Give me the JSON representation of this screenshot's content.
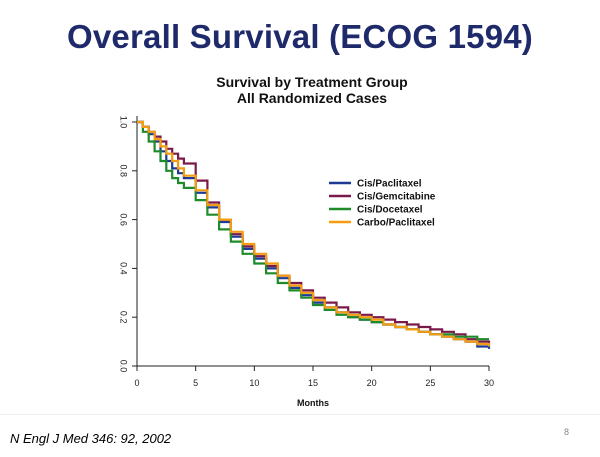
{
  "slide": {
    "title": "Overall Survival (ECOG 1594)",
    "citation": "N Engl J Med 346: 92, 2002",
    "page_number": "8"
  },
  "chart_data": {
    "type": "line",
    "title": "Survival by Treatment Group",
    "subtitle": "All Randomized Cases",
    "xlabel": "Months",
    "ylabel": "",
    "xlim": [
      0,
      30
    ],
    "ylim": [
      0,
      1
    ],
    "xticks": [
      0,
      5,
      10,
      15,
      20,
      25,
      30
    ],
    "yticks": [
      0.0,
      0.2,
      0.4,
      0.6,
      0.8,
      1.0
    ],
    "ytick_labels": [
      "0.0",
      "0.2",
      "0.4",
      "0.6",
      "0.8",
      "1.0"
    ],
    "grid": false,
    "legend_position": "right",
    "series": [
      {
        "name": "Cis/Paclitaxel",
        "color": "#1f3a93",
        "x": [
          0,
          0.5,
          1,
          1.5,
          2,
          2.5,
          3,
          3.5,
          4,
          5,
          6,
          7,
          8,
          9,
          10,
          11,
          12,
          13,
          14,
          15,
          16,
          17,
          18,
          19,
          20,
          21,
          22,
          23,
          24,
          25,
          26,
          27,
          28,
          29,
          30
        ],
        "y": [
          1.0,
          0.98,
          0.95,
          0.92,
          0.88,
          0.84,
          0.81,
          0.79,
          0.77,
          0.71,
          0.65,
          0.59,
          0.53,
          0.48,
          0.44,
          0.4,
          0.36,
          0.32,
          0.29,
          0.26,
          0.24,
          0.22,
          0.2,
          0.19,
          0.18,
          0.17,
          0.16,
          0.15,
          0.14,
          0.13,
          0.12,
          0.11,
          0.1,
          0.08,
          0.07
        ]
      },
      {
        "name": "Cis/Gemcitabine",
        "color": "#7a1a4a",
        "x": [
          0,
          0.5,
          1,
          1.5,
          2,
          2.5,
          3,
          3.5,
          4,
          5,
          6,
          7,
          8,
          9,
          10,
          11,
          12,
          13,
          14,
          15,
          16,
          17,
          18,
          19,
          20,
          21,
          22,
          23,
          24,
          25,
          26,
          27,
          28,
          29,
          30
        ],
        "y": [
          1.0,
          0.98,
          0.96,
          0.94,
          0.92,
          0.89,
          0.87,
          0.85,
          0.83,
          0.76,
          0.67,
          0.6,
          0.54,
          0.49,
          0.45,
          0.41,
          0.37,
          0.34,
          0.31,
          0.28,
          0.26,
          0.24,
          0.22,
          0.21,
          0.2,
          0.19,
          0.18,
          0.17,
          0.16,
          0.15,
          0.14,
          0.13,
          0.11,
          0.1,
          0.09
        ]
      },
      {
        "name": "Cis/Docetaxel",
        "color": "#1f8a2a",
        "x": [
          0,
          0.5,
          1,
          1.5,
          2,
          2.5,
          3,
          3.5,
          4,
          5,
          6,
          7,
          8,
          9,
          10,
          11,
          12,
          13,
          14,
          15,
          16,
          17,
          18,
          19,
          20,
          21,
          22,
          23,
          24,
          25,
          26,
          27,
          28,
          29,
          30
        ],
        "y": [
          1.0,
          0.96,
          0.92,
          0.88,
          0.84,
          0.8,
          0.77,
          0.75,
          0.73,
          0.68,
          0.62,
          0.56,
          0.51,
          0.46,
          0.42,
          0.38,
          0.34,
          0.31,
          0.28,
          0.25,
          0.23,
          0.21,
          0.2,
          0.19,
          0.18,
          0.17,
          0.16,
          0.15,
          0.14,
          0.13,
          0.13,
          0.12,
          0.12,
          0.11,
          0.11
        ]
      },
      {
        "name": "Carbo/Paclitaxel",
        "color": "#f39c12",
        "x": [
          0,
          0.5,
          1,
          1.5,
          2,
          2.5,
          3,
          3.5,
          4,
          5,
          6,
          7,
          8,
          9,
          10,
          11,
          12,
          13,
          14,
          15,
          16,
          17,
          18,
          19,
          20,
          21,
          22,
          23,
          24,
          25,
          26,
          27,
          28,
          29,
          30
        ],
        "y": [
          1.0,
          0.98,
          0.96,
          0.93,
          0.9,
          0.87,
          0.84,
          0.81,
          0.78,
          0.72,
          0.66,
          0.6,
          0.55,
          0.5,
          0.46,
          0.42,
          0.37,
          0.33,
          0.3,
          0.27,
          0.24,
          0.22,
          0.21,
          0.2,
          0.19,
          0.17,
          0.16,
          0.15,
          0.14,
          0.13,
          0.12,
          0.11,
          0.1,
          0.09,
          0.08
        ]
      }
    ]
  }
}
